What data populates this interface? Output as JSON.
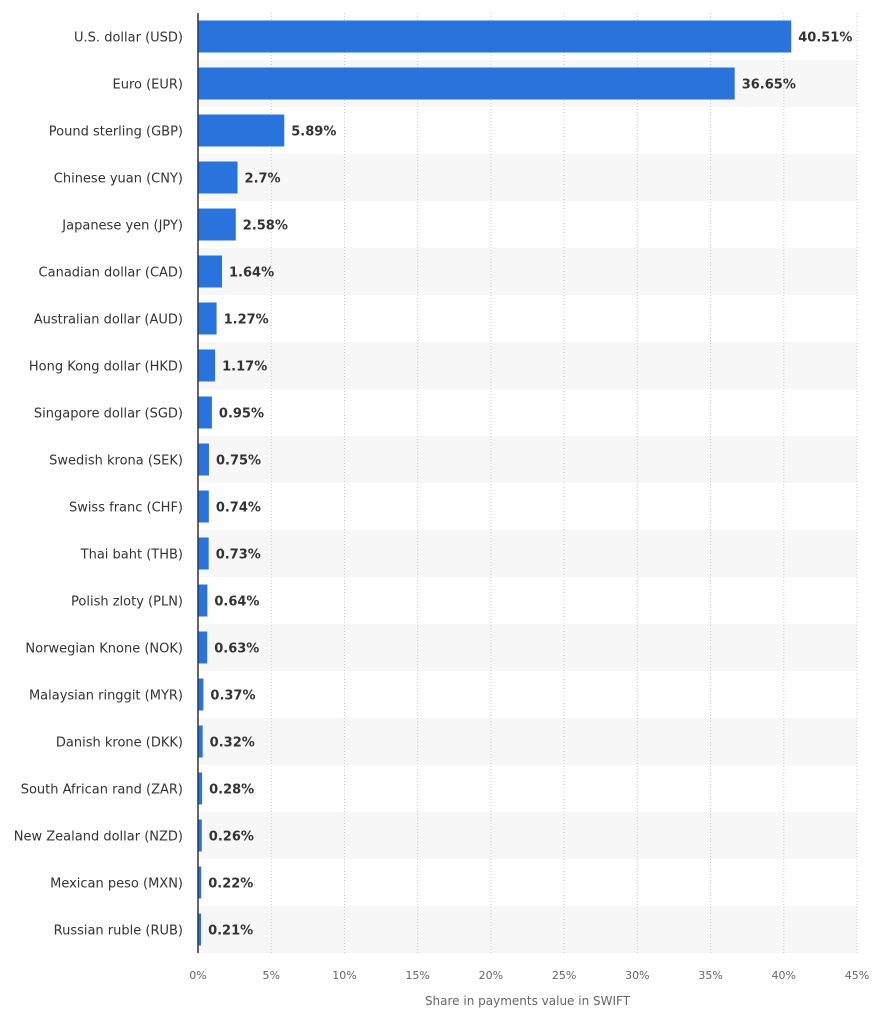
{
  "chart_data": {
    "type": "bar",
    "orientation": "horizontal",
    "categories": [
      "U.S. dollar (USD)",
      "Euro (EUR)",
      "Pound sterling (GBP)",
      "Chinese yuan (CNY)",
      "Japanese yen (JPY)",
      "Canadian dollar (CAD)",
      "Australian dollar (AUD)",
      "Hong Kong dollar (HKD)",
      "Singapore dollar (SGD)",
      "Swedish krona (SEK)",
      "Swiss franc (CHF)",
      "Thai baht (THB)",
      "Polish zloty (PLN)",
      "Norwegian Knone (NOK)",
      "Malaysian ringgit (MYR)",
      "Danish krone (DKK)",
      "South African rand (ZAR)",
      "New Zealand dollar (NZD)",
      "Mexican peso (MXN)",
      "Russian ruble (RUB)"
    ],
    "values": [
      40.51,
      36.65,
      5.89,
      2.7,
      2.58,
      1.64,
      1.27,
      1.17,
      0.95,
      0.75,
      0.74,
      0.73,
      0.64,
      0.63,
      0.37,
      0.32,
      0.28,
      0.26,
      0.22,
      0.21
    ],
    "value_labels": [
      "40.51%",
      "36.65%",
      "5.89%",
      "2.7%",
      "2.58%",
      "1.64%",
      "1.27%",
      "1.17%",
      "0.95%",
      "0.75%",
      "0.74%",
      "0.73%",
      "0.64%",
      "0.63%",
      "0.37%",
      "0.32%",
      "0.28%",
      "0.26%",
      "0.22%",
      "0.21%"
    ],
    "xlabel": "Share in payments value in SWIFT",
    "ylabel": "",
    "xlim": [
      0,
      45
    ],
    "xticks": [
      0,
      5,
      10,
      15,
      20,
      25,
      30,
      35,
      40,
      45
    ],
    "xtick_labels": [
      "0%",
      "5%",
      "10%",
      "15%",
      "20%",
      "25%",
      "30%",
      "35%",
      "40%",
      "45%"
    ],
    "grid": true,
    "colors": {
      "bar": "#2874dc",
      "band": "#f7f7f7",
      "grid": "#cccccc",
      "axis": "#333333",
      "text": "#333333",
      "tick_text": "#666666"
    }
  }
}
